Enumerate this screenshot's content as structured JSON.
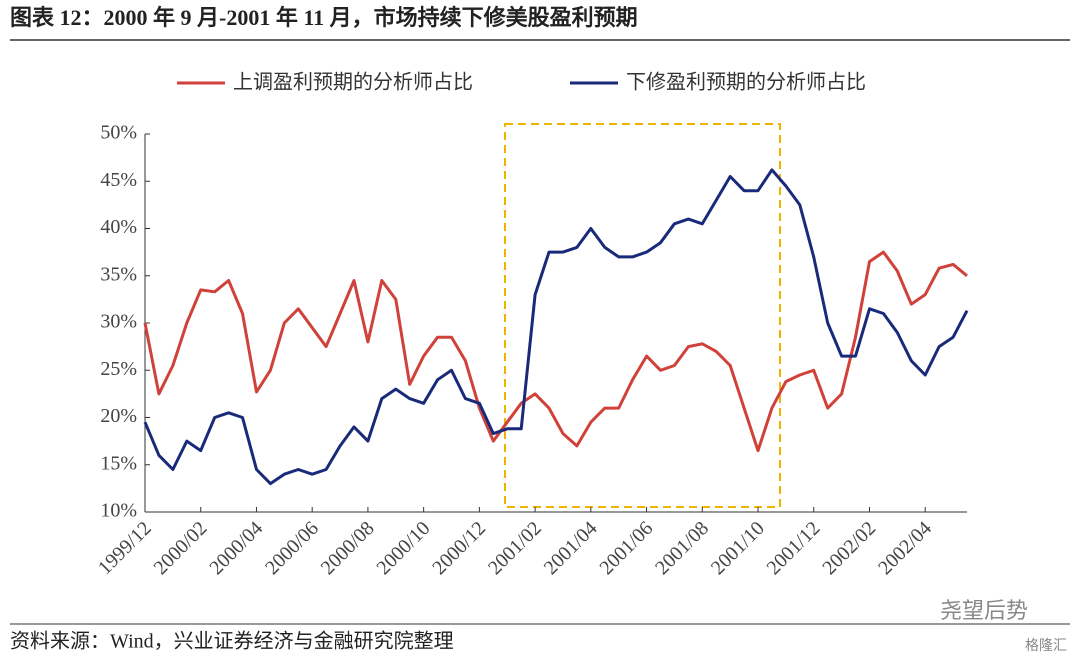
{
  "title": "图表 12：2000 年 9 月-2001 年 11 月，市场持续下修美股盈利预期",
  "source": "资料来源：Wind，兴业证券经济与金融研究院整理",
  "watermark": "尧望后势",
  "watermark2": "格隆汇",
  "chart_data": {
    "type": "line",
    "categories": [
      "1999/12",
      null,
      null,
      null,
      "2000/02",
      null,
      null,
      null,
      "2000/04",
      null,
      null,
      null,
      "2000/06",
      null,
      null,
      null,
      "2000/08",
      null,
      null,
      null,
      "2000/10",
      null,
      null,
      null,
      "2000/12",
      null,
      null,
      null,
      "2001/02",
      null,
      null,
      null,
      "2001/04",
      null,
      null,
      null,
      "2001/06",
      null,
      null,
      null,
      "2001/08",
      null,
      null,
      null,
      "2001/10",
      null,
      null,
      null,
      "2001/12",
      null,
      null,
      null,
      "2002/02",
      null,
      null,
      null,
      "2002/04",
      null,
      null,
      null
    ],
    "series": [
      {
        "name": "上调盈利预期的分析师占比",
        "color": "#d0413a",
        "values": [
          30,
          22.5,
          25.5,
          30,
          33.5,
          33.3,
          34.5,
          31,
          22.7,
          25,
          30,
          31.5,
          29.5,
          27.5,
          31,
          34.5,
          28,
          34.5,
          32.5,
          23.5,
          26.5,
          28.5,
          28.5,
          26,
          21,
          17.5,
          19.5,
          21.5,
          22.5,
          21,
          18.3,
          17,
          19.5,
          21,
          21,
          24,
          26.5,
          25,
          25.5,
          27.5,
          27.8,
          27,
          25.5,
          21,
          16.5,
          21,
          23.8,
          24.5,
          25,
          21,
          22.5,
          28.5,
          36.5,
          37.5,
          35.5,
          32,
          33,
          35.8,
          36.2,
          35
        ]
      },
      {
        "name": "下修盈利预期的分析师占比",
        "color": "#1a2a7a",
        "values": [
          19.5,
          16,
          14.5,
          17.5,
          16.5,
          20,
          20.5,
          20,
          14.5,
          13,
          14,
          14.5,
          14,
          14.5,
          17,
          19,
          17.5,
          22,
          23,
          22,
          21.5,
          24,
          25,
          22,
          21.5,
          18.3,
          18.8,
          18.8,
          33,
          37.5,
          37.5,
          38,
          40,
          38,
          37,
          37,
          37.5,
          38.5,
          40.5,
          41,
          40.5,
          43,
          45.5,
          44,
          44,
          46.2,
          44.5,
          42.5,
          37,
          30,
          26.5,
          26.5,
          31.5,
          31,
          29,
          26,
          24.5,
          27.5,
          28.5,
          31.3
        ]
      }
    ],
    "ylim": [
      10,
      50
    ],
    "yticks": [
      {
        "value": 10,
        "label": "10%"
      },
      {
        "value": 15,
        "label": "15%"
      },
      {
        "value": 20,
        "label": "20%"
      },
      {
        "value": 25,
        "label": "25%"
      },
      {
        "value": 30,
        "label": "30%"
      },
      {
        "value": 35,
        "label": "35%"
      },
      {
        "value": 40,
        "label": "40%"
      },
      {
        "value": 45,
        "label": "45%"
      },
      {
        "value": 50,
        "label": "50%"
      }
    ],
    "legend": "top",
    "grid": false
  }
}
